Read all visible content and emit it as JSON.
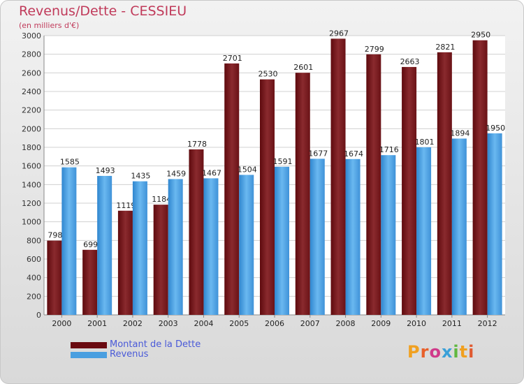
{
  "chart_data": {
    "type": "bar",
    "title": "Revenus/Dette - CESSIEU",
    "subtitle": "(en milliers d'€)",
    "categories": [
      "2000",
      "2001",
      "2002",
      "2003",
      "2004",
      "2005",
      "2006",
      "2007",
      "2008",
      "2009",
      "2010",
      "2011",
      "2012"
    ],
    "series": [
      {
        "name": "Montant de la Dette",
        "color": "#7a1a1e",
        "values": [
          798,
          699,
          1119,
          1184,
          1778,
          2701,
          2530,
          2601,
          2967,
          2799,
          2663,
          2821,
          2950
        ]
      },
      {
        "name": "Revenus",
        "color": "#4a9fe0",
        "values": [
          1585,
          1493,
          1435,
          1459,
          1467,
          1504,
          1591,
          1677,
          1674,
          1716,
          1801,
          1894,
          1950
        ]
      }
    ],
    "ylim": [
      0,
      3000
    ],
    "yticks": [
      0,
      200,
      400,
      600,
      800,
      1000,
      1200,
      1400,
      1600,
      1800,
      2000,
      2200,
      2400,
      2600,
      2800,
      3000
    ],
    "grid": true,
    "legend_position": "bottom-left"
  },
  "logo": {
    "text": "Proxiti",
    "colors": [
      "#f0a020",
      "#e8602a",
      "#d03a8a",
      "#3aa0d8",
      "#60b840",
      "#f0a020",
      "#e05a30"
    ]
  }
}
